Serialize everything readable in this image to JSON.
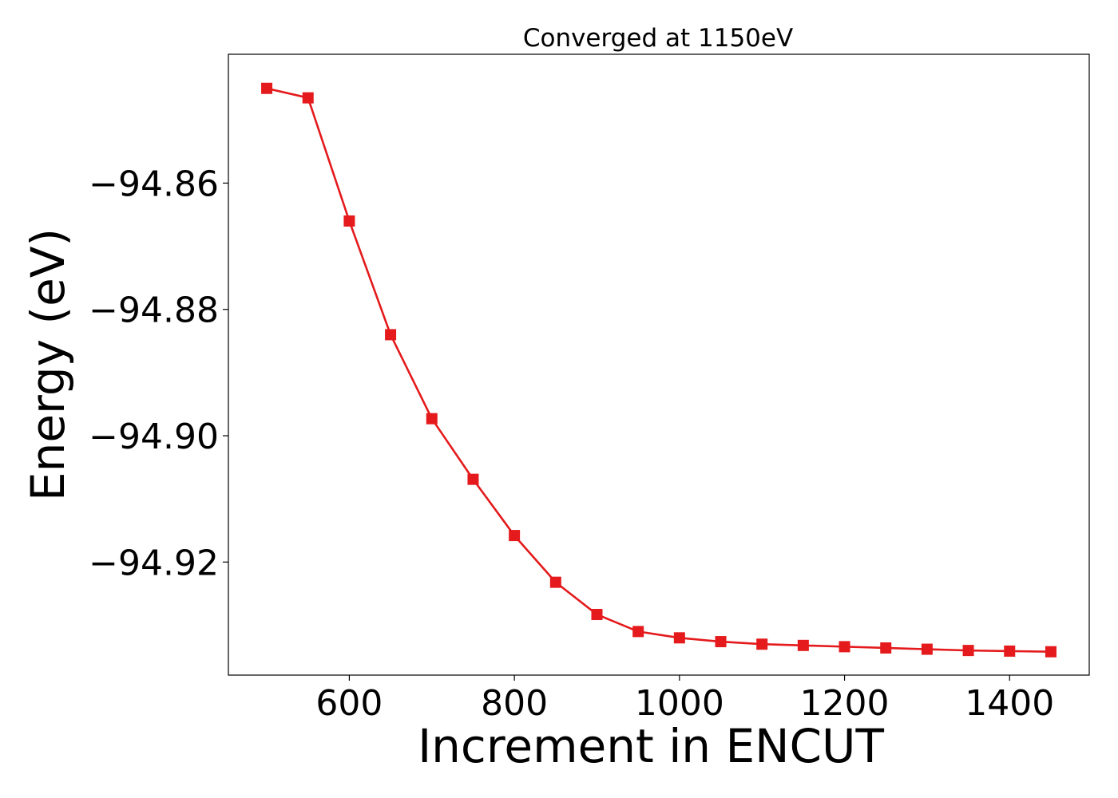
{
  "chart_data": {
    "type": "line",
    "title": "Converged at 1150eV",
    "xlabel": "Increment in ENCUT",
    "ylabel": "Energy (eV)",
    "x": [
      500,
      550,
      600,
      650,
      700,
      750,
      800,
      850,
      900,
      950,
      1000,
      1050,
      1100,
      1150,
      1200,
      1250,
      1300,
      1350,
      1400,
      1450
    ],
    "series": [
      {
        "values": [
          -94.845,
          -94.8465,
          -94.866,
          -94.884,
          -94.8973,
          -94.9069,
          -94.9158,
          -94.9232,
          -94.9283,
          -94.931,
          -94.932,
          -94.9326,
          -94.933,
          -94.9332,
          -94.9334,
          -94.9336,
          -94.9338,
          -94.934,
          -94.9341,
          -94.9342
        ],
        "color": "#e41a1c",
        "marker": "square"
      }
    ],
    "xlim": [
      453.5,
      1496.5
    ],
    "ylim": [
      -94.9379,
      -94.8396
    ],
    "xticks": [
      600,
      800,
      1000,
      1200,
      1400
    ],
    "xtick_labels": [
      "600",
      "800",
      "1000",
      "1200",
      "1400"
    ],
    "yticks": [
      -94.86,
      -94.88,
      -94.9,
      -94.92
    ],
    "ytick_labels": [
      "−94.86",
      "−94.88",
      "−94.90",
      "−94.92"
    ],
    "grid": false,
    "legend": "none"
  }
}
